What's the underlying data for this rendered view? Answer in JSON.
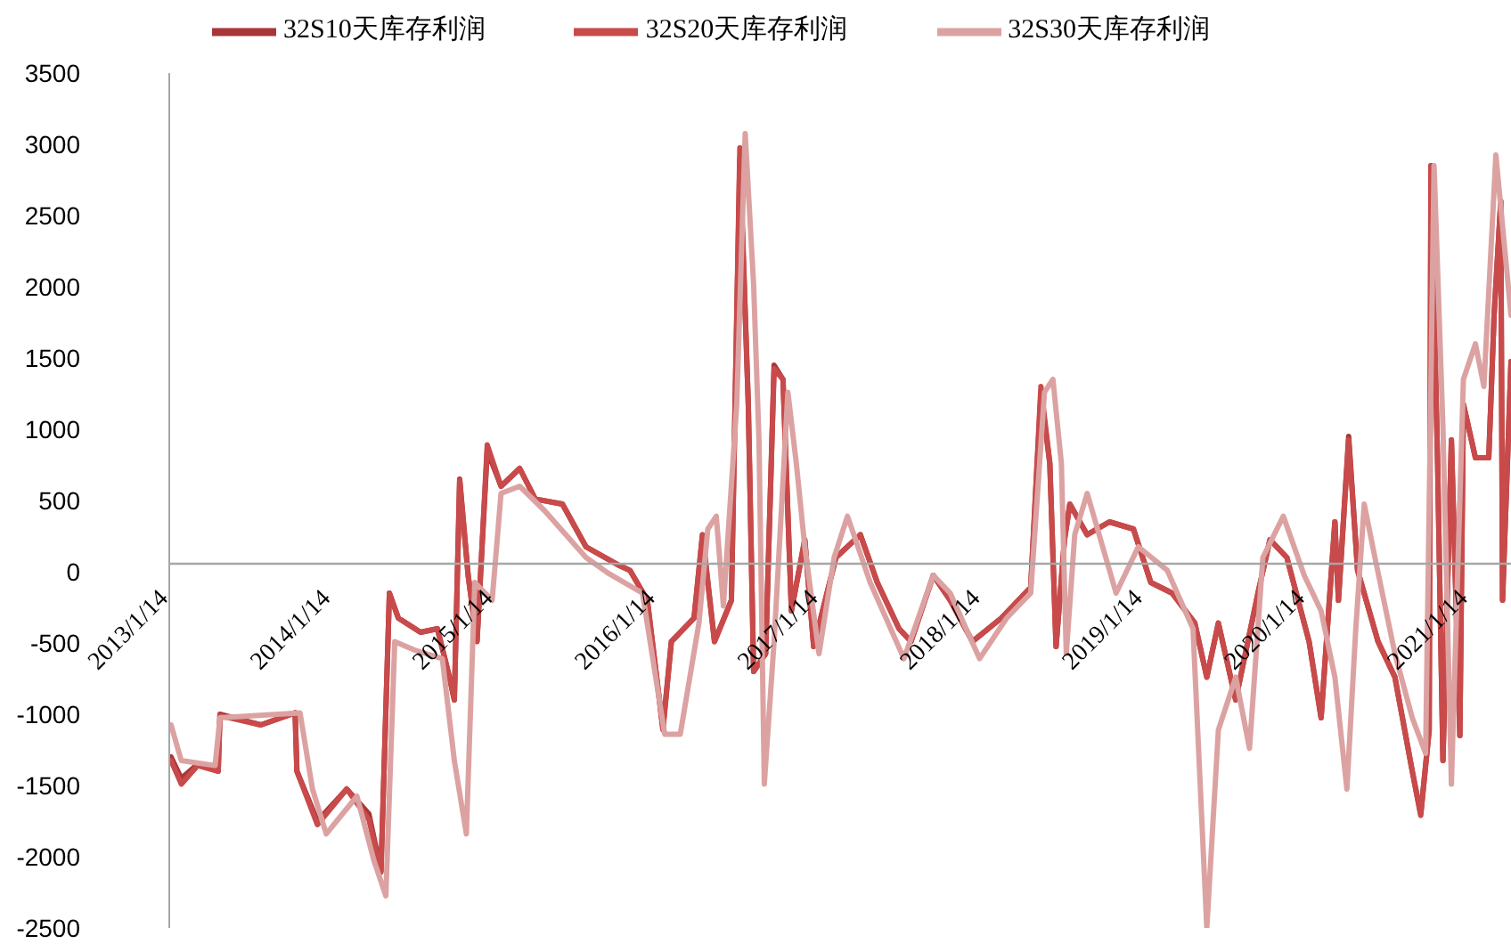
{
  "chart_data": {
    "type": "line",
    "legend": "top",
    "line_style": "solid",
    "xlim": [
      "2013-01-14",
      "2021-04-19"
    ],
    "xticks": [
      {
        "value": "2013-01-14",
        "label": "2013/1/14"
      },
      {
        "value": "2014-01-14",
        "label": "2014/1/14"
      },
      {
        "value": "2015-01-14",
        "label": "2015/1/14"
      },
      {
        "value": "2016-01-14",
        "label": "2016/1/14"
      },
      {
        "value": "2017-01-14",
        "label": "2017/1/14"
      },
      {
        "value": "2018-01-14",
        "label": "2018/1/14"
      },
      {
        "value": "2019-01-14",
        "label": "2019/1/14"
      },
      {
        "value": "2020-01-14",
        "label": "2020/1/14"
      },
      {
        "value": "2021-01-14",
        "label": "2021/1/14"
      }
    ],
    "ylim": [
      -2500,
      3500
    ],
    "yticks": [
      -2500,
      -2000,
      -1500,
      -1000,
      -500,
      0,
      500,
      1000,
      1500,
      2000,
      2500,
      3000,
      3500
    ],
    "grid": false,
    "series": [
      {
        "name": "32S10天库存利润",
        "color": "#a83638",
        "x": [
          "2013-01-18",
          "2013-02-10",
          "2013-03-19",
          "2013-05-04",
          "2013-05-08",
          "2013-08-08",
          "2013-10-24",
          "2013-10-28",
          "2013-12-13",
          "2014-02-17",
          "2014-04-08",
          "2014-05-05",
          "2014-05-24",
          "2014-06-13",
          "2014-08-02",
          "2014-09-09",
          "2014-10-06",
          "2014-10-17",
          "2014-10-29",
          "2014-11-17",
          "2014-12-07",
          "2014-12-30",
          "2015-01-30",
          "2015-03-13",
          "2015-04-17",
          "2015-06-17",
          "2015-08-09",
          "2015-10-25",
          "2015-11-16",
          "2015-12-25",
          "2016-01-29",
          "2016-02-17",
          "2016-04-08",
          "2016-04-27",
          "2016-05-24",
          "2016-07-01",
          "2016-07-20",
          "2016-08-08",
          "2016-08-20",
          "2016-09-16",
          "2016-10-05",
          "2016-10-25",
          "2016-11-13",
          "2016-12-13",
          "2017-01-02",
          "2017-02-21",
          "2017-04-17",
          "2017-05-25",
          "2017-07-13",
          "2017-08-09",
          "2017-09-28",
          "2017-11-05",
          "2017-12-25",
          "2018-02-28",
          "2018-05-05",
          "2018-05-28",
          "2018-06-17",
          "2018-07-01",
          "2018-07-20",
          "2018-08-01",
          "2018-09-09",
          "2018-10-29",
          "2018-12-22",
          "2019-01-30",
          "2019-03-19",
          "2019-05-09",
          "2019-06-05",
          "2019-07-01",
          "2019-08-09",
          "2019-09-28",
          "2019-10-25",
          "2019-12-02",
          "2020-01-21",
          "2020-02-17",
          "2020-03-19",
          "2020-03-27",
          "2020-04-19",
          "2020-05-09",
          "2020-06-24",
          "2020-08-01",
          "2020-09-09",
          "2020-09-28",
          "2020-10-17",
          "2020-10-21",
          "2020-11-05",
          "2020-11-17",
          "2020-12-06",
          "2020-12-25",
          "2021-01-02",
          "2021-01-29",
          "2021-02-28",
          "2021-03-12",
          "2021-03-27",
          "2021-03-31",
          "2021-04-19"
        ],
        "values": [
          -1300,
          -1450,
          -1350,
          -1400,
          -1000,
          -1075,
          -990,
          -1400,
          -1750,
          -1525,
          -1700,
          -2100,
          -150,
          -325,
          -425,
          -400,
          -740,
          -900,
          650,
          -25,
          -490,
          850,
          600,
          725,
          510,
          475,
          175,
          40,
          10,
          -200,
          -1100,
          -490,
          -325,
          260,
          -490,
          -200,
          2900,
          1175,
          -700,
          -575,
          1450,
          1350,
          -275,
          225,
          -525,
          100,
          260,
          -75,
          -400,
          -490,
          -25,
          -200,
          -490,
          -325,
          -110,
          1250,
          760,
          -525,
          225,
          475,
          260,
          350,
          300,
          -75,
          -150,
          -360,
          -740,
          -360,
          -900,
          -150,
          225,
          100,
          -490,
          -1025,
          350,
          -200,
          950,
          10,
          -490,
          -740,
          -1400,
          -1700,
          -1110,
          2850,
          760,
          -1325,
          925,
          -1150,
          1175,
          800,
          800,
          1800,
          2600,
          -200,
          1475
        ]
      },
      {
        "name": "32S20天库存利润",
        "color": "#c94a4a",
        "x": [
          "2013-01-18",
          "2013-02-10",
          "2013-03-19",
          "2013-05-04",
          "2013-05-08",
          "2013-08-08",
          "2013-10-24",
          "2013-10-28",
          "2013-12-13",
          "2014-02-17",
          "2014-04-08",
          "2014-05-05",
          "2014-05-24",
          "2014-06-13",
          "2014-08-02",
          "2014-09-09",
          "2014-10-06",
          "2014-10-17",
          "2014-10-29",
          "2014-11-17",
          "2014-12-07",
          "2014-12-30",
          "2015-01-30",
          "2015-03-13",
          "2015-04-17",
          "2015-06-17",
          "2015-08-09",
          "2015-10-25",
          "2015-11-16",
          "2015-12-25",
          "2016-01-29",
          "2016-02-17",
          "2016-04-08",
          "2016-04-27",
          "2016-05-24",
          "2016-07-01",
          "2016-07-20",
          "2016-08-08",
          "2016-08-20",
          "2016-09-16",
          "2016-10-05",
          "2016-10-25",
          "2016-11-13",
          "2016-12-13",
          "2017-01-02",
          "2017-02-21",
          "2017-04-17",
          "2017-05-25",
          "2017-07-13",
          "2017-08-09",
          "2017-09-28",
          "2017-11-05",
          "2017-12-25",
          "2018-02-28",
          "2018-05-05",
          "2018-05-28",
          "2018-06-17",
          "2018-07-01",
          "2018-07-20",
          "2018-08-01",
          "2018-09-09",
          "2018-10-29",
          "2018-12-22",
          "2019-01-30",
          "2019-03-19",
          "2019-05-09",
          "2019-06-05",
          "2019-07-01",
          "2019-08-09",
          "2019-09-28",
          "2019-10-25",
          "2019-12-02",
          "2020-01-21",
          "2020-02-17",
          "2020-03-19",
          "2020-03-27",
          "2020-04-19",
          "2020-05-09",
          "2020-06-24",
          "2020-08-01",
          "2020-09-09",
          "2020-09-28",
          "2020-10-17",
          "2020-10-21",
          "2020-11-05",
          "2020-11-17",
          "2020-12-06",
          "2020-12-25",
          "2021-01-02",
          "2021-01-29",
          "2021-02-28",
          "2021-03-12",
          "2021-03-27",
          "2021-03-31",
          "2021-04-19"
        ],
        "values": [
          -1325,
          -1490,
          -1360,
          -1400,
          -1010,
          -1075,
          -990,
          -1400,
          -1775,
          -1525,
          -1740,
          -2110,
          -150,
          -325,
          -425,
          -400,
          -740,
          -900,
          640,
          -25,
          -490,
          890,
          600,
          725,
          510,
          475,
          175,
          40,
          10,
          -200,
          -1110,
          -490,
          -325,
          260,
          -490,
          -200,
          2975,
          1175,
          -700,
          -575,
          1425,
          1350,
          -275,
          225,
          -525,
          100,
          260,
          -75,
          -400,
          -490,
          -25,
          -200,
          -490,
          -325,
          -110,
          1300,
          760,
          -525,
          225,
          475,
          260,
          350,
          300,
          -75,
          -150,
          -360,
          -740,
          -360,
          -900,
          -150,
          225,
          100,
          -490,
          -1025,
          350,
          -200,
          925,
          10,
          -490,
          -740,
          -1400,
          -1710,
          -1110,
          2850,
          760,
          -1325,
          925,
          -1150,
          1175,
          800,
          800,
          1800,
          2600,
          -200,
          1475
        ]
      },
      {
        "name": "32S30天库存利润",
        "color": "#dca2a2",
        "x": [
          "2013-01-18",
          "2013-02-10",
          "2013-04-27",
          "2013-05-08",
          "2013-11-04",
          "2013-12-02",
          "2014-01-02",
          "2014-03-12",
          "2014-04-19",
          "2014-05-16",
          "2014-06-05",
          "2014-07-20",
          "2014-09-20",
          "2014-10-17",
          "2014-11-13",
          "2014-12-02",
          "2015-01-10",
          "2015-01-30",
          "2015-03-13",
          "2015-05-09",
          "2015-08-09",
          "2015-09-28",
          "2015-12-14",
          "2016-02-02",
          "2016-03-08",
          "2016-04-19",
          "2016-05-09",
          "2016-05-28",
          "2016-06-13",
          "2016-07-13",
          "2016-08-01",
          "2016-08-20",
          "2016-09-01",
          "2016-09-13",
          "2016-10-05",
          "2016-11-05",
          "2016-11-24",
          "2016-12-13",
          "2017-01-14",
          "2017-02-17",
          "2017-03-19",
          "2017-05-09",
          "2017-07-24",
          "2017-09-28",
          "2017-11-05",
          "2018-01-10",
          "2018-03-12",
          "2018-05-05",
          "2018-06-05",
          "2018-06-24",
          "2018-07-13",
          "2018-07-24",
          "2018-08-12",
          "2018-09-09",
          "2018-09-16",
          "2018-11-13",
          "2019-01-02",
          "2019-03-08",
          "2019-05-05",
          "2019-06-05",
          "2019-07-01",
          "2019-08-09",
          "2019-09-09",
          "2019-10-09",
          "2019-11-24",
          "2020-01-10",
          "2020-02-17",
          "2020-03-19",
          "2020-04-15",
          "2020-05-05",
          "2020-05-24",
          "2020-06-17",
          "2020-08-01",
          "2020-09-09",
          "2020-10-09",
          "2020-10-28",
          "2020-11-17",
          "2020-12-06",
          "2021-01-02",
          "2021-01-29",
          "2021-02-17",
          "2021-03-16",
          "2021-04-19"
        ],
        "values": [
          -1075,
          -1325,
          -1360,
          -1025,
          -990,
          -1525,
          -1840,
          -1575,
          -2025,
          -2275,
          -490,
          -550,
          -610,
          -1325,
          -1840,
          -75,
          -200,
          550,
          600,
          425,
          100,
          -10,
          -150,
          -1140,
          -1140,
          -360,
          300,
          390,
          -240,
          1175,
          3075,
          2010,
          925,
          -1490,
          -490,
          1260,
          760,
          175,
          -575,
          100,
          390,
          -75,
          -610,
          -25,
          -150,
          -610,
          -325,
          -150,
          1260,
          1350,
          760,
          -575,
          260,
          550,
          475,
          -150,
          175,
          10,
          -400,
          -2500,
          -1110,
          -740,
          -1240,
          100,
          390,
          -25,
          -275,
          -740,
          -1525,
          -400,
          475,
          100,
          -575,
          -1025,
          -1275,
          2850,
          1010,
          -1490,
          1350,
          1600,
          1300,
          2925,
          1800
        ]
      }
    ]
  }
}
